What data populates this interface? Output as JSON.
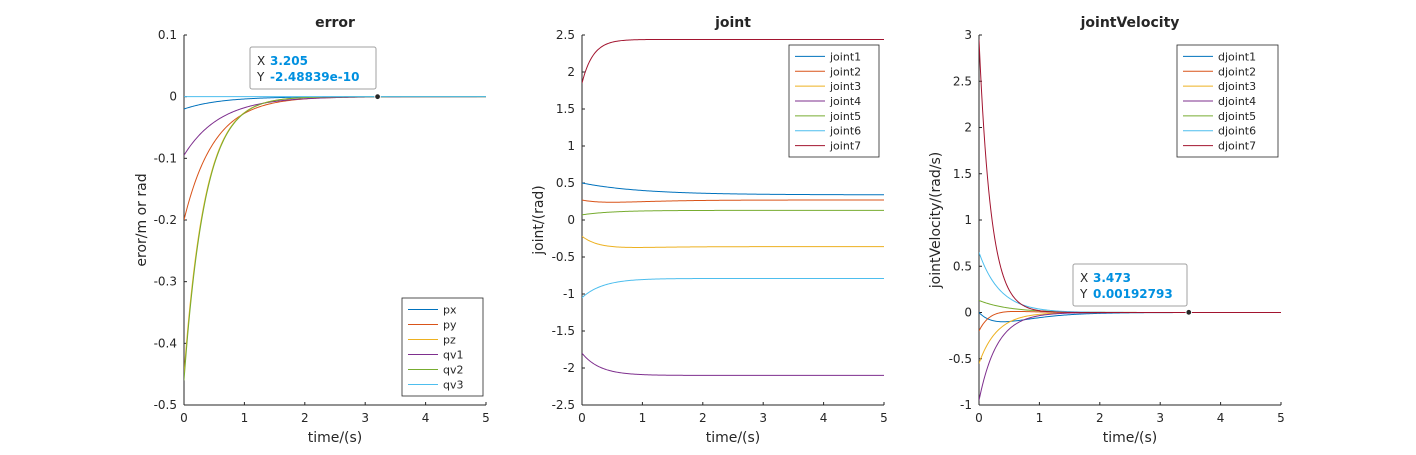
{
  "chart_data": [
    {
      "type": "line",
      "title": "error",
      "xlabel": "time/(s)",
      "ylabel": "eror/m or rad",
      "xlim": [
        0,
        5
      ],
      "ylim": [
        -0.5,
        0.1
      ],
      "xticks": [
        "0",
        "1",
        "2",
        "3",
        "4",
        "5"
      ],
      "yticks": [
        "0.1",
        "0",
        "-0.1",
        "-0.2",
        "-0.3",
        "-0.4",
        "-0.5"
      ],
      "legend_position": "bottom-right",
      "series": [
        {
          "name": "px",
          "color": "#0072bd",
          "start": -0.02,
          "end": 0.0,
          "tau": 0.6
        },
        {
          "name": "py",
          "color": "#d95319",
          "start": -0.2,
          "end": 0.0,
          "tau": 0.5
        },
        {
          "name": "pz",
          "color": "#edb120",
          "start": -0.45,
          "end": 0.0,
          "tau": 0.35
        },
        {
          "name": "qv1",
          "color": "#7e2f8e",
          "start": -0.095,
          "end": 0.0,
          "tau": 0.6
        },
        {
          "name": "qv2",
          "color": "#77ac30",
          "start": -0.46,
          "end": 0.0,
          "tau": 0.35
        },
        {
          "name": "qv3",
          "color": "#4dbeee",
          "start": 0.0,
          "end": 0.0,
          "tau": 0.5
        }
      ],
      "datatip": {
        "x_label": "X",
        "x_value": "3.205",
        "y_label": "Y",
        "y_value": "-2.48839e-10",
        "x": 3.205,
        "y": 0
      }
    },
    {
      "type": "line",
      "title": "joint",
      "xlabel": "time/(s)",
      "ylabel": "joint/(rad)",
      "xlim": [
        0,
        5
      ],
      "ylim": [
        -2.5,
        2.5
      ],
      "xticks": [
        "0",
        "1",
        "2",
        "3",
        "4",
        "5"
      ],
      "yticks": [
        "2.5",
        "2",
        "1.5",
        "1",
        "0.5",
        "0",
        "-0.5",
        "-1",
        "-1.5",
        "-2",
        "-2.5"
      ],
      "legend_position": "top-right",
      "series": [
        {
          "name": "joint1",
          "color": "#0072bd",
          "start": 0.5,
          "end": 0.34,
          "tau": 1.0
        },
        {
          "name": "joint2",
          "color": "#d95319",
          "start": 0.27,
          "end": 0.27,
          "tau": 0.5,
          "dip": -0.03
        },
        {
          "name": "joint3",
          "color": "#edb120",
          "start": -0.22,
          "end": -0.36,
          "tau": 0.4,
          "dip": -0.04
        },
        {
          "name": "joint4",
          "color": "#7e2f8e",
          "start": -1.8,
          "end": -2.1,
          "tau": 0.3
        },
        {
          "name": "joint5",
          "color": "#77ac30",
          "start": 0.07,
          "end": 0.13,
          "tau": 0.5
        },
        {
          "name": "joint6",
          "color": "#4dbeee",
          "start": -1.05,
          "end": -0.79,
          "tau": 0.35
        },
        {
          "name": "joint7",
          "color": "#a2142f",
          "start": 1.85,
          "end": 2.44,
          "tau": 0.2,
          "bump": 0.02
        }
      ]
    },
    {
      "type": "line",
      "title": "jointVelocity",
      "xlabel": "time/(s)",
      "ylabel": "jointVelocity/(rad/s)",
      "xlim": [
        0,
        5
      ],
      "ylim": [
        -1,
        3
      ],
      "xticks": [
        "0",
        "1",
        "2",
        "3",
        "4",
        "5"
      ],
      "yticks": [
        "3",
        "2.5",
        "2",
        "1.5",
        "1",
        "0.5",
        "0",
        "-0.5",
        "-1"
      ],
      "legend_position": "top-right",
      "series": [
        {
          "name": "djoint1",
          "color": "#0072bd",
          "start": 0.0,
          "end": 0.0,
          "tau": 0.4,
          "dip": -0.1
        },
        {
          "name": "djoint2",
          "color": "#d95319",
          "start": -0.2,
          "end": 0.0,
          "tau": 0.25,
          "dip": 0.05
        },
        {
          "name": "djoint3",
          "color": "#edb120",
          "start": -0.55,
          "end": 0.0,
          "tau": 0.3
        },
        {
          "name": "djoint4",
          "color": "#7e2f8e",
          "start": -0.95,
          "end": 0.0,
          "tau": 0.3
        },
        {
          "name": "djoint5",
          "color": "#77ac30",
          "start": 0.13,
          "end": 0.0,
          "tau": 0.5
        },
        {
          "name": "djoint6",
          "color": "#4dbeee",
          "start": 0.65,
          "end": 0.0,
          "tau": 0.35
        },
        {
          "name": "djoint7",
          "color": "#a2142f",
          "start": 2.95,
          "end": 0.0,
          "tau": 0.2
        }
      ],
      "datatip": {
        "x_label": "X",
        "x_value": "3.473",
        "y_label": "Y",
        "y_value": "0.00192793",
        "x": 3.473,
        "y": 0.00192793
      }
    }
  ]
}
